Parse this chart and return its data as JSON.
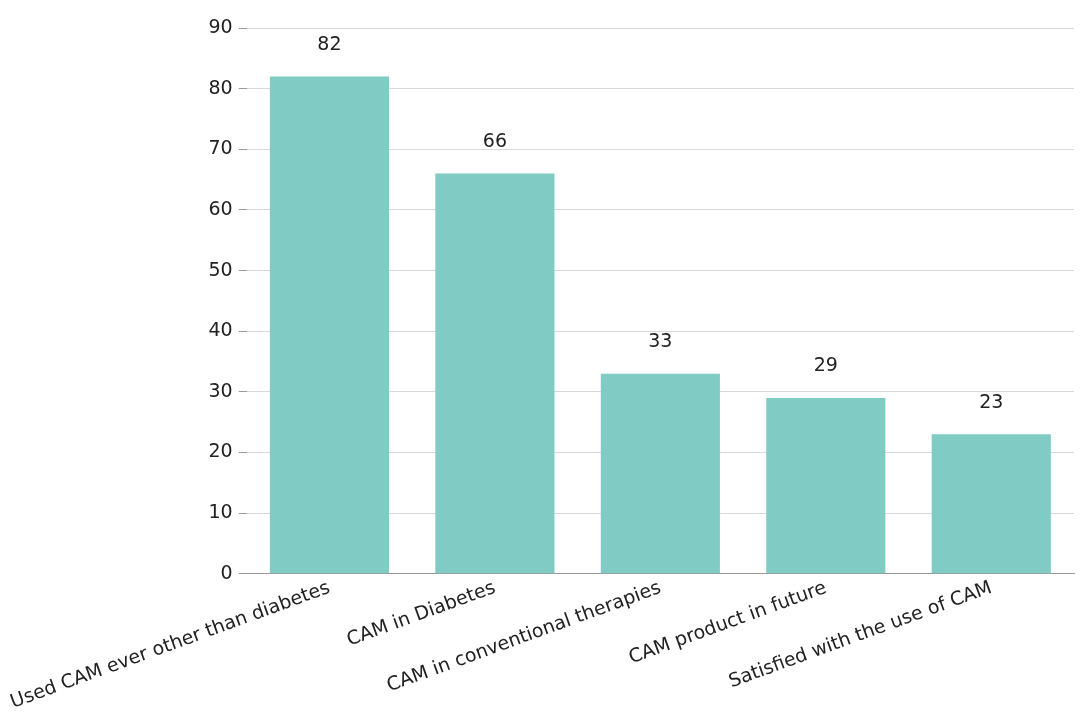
{
  "chart_data": {
    "type": "bar",
    "categories": [
      "Used CAM ever other than diabetes",
      "CAM in Diabetes",
      "CAM in conventional therapies",
      "CAM product in future",
      "Satisfied with the use of CAM"
    ],
    "values": [
      82,
      66,
      33,
      29,
      23
    ],
    "color": "#80cbc4",
    "ylim": [
      0,
      90
    ],
    "yticks": [
      0,
      10,
      20,
      30,
      40,
      50,
      60,
      70,
      80,
      90
    ],
    "grid": "y",
    "data_labels": true,
    "legend": false
  }
}
